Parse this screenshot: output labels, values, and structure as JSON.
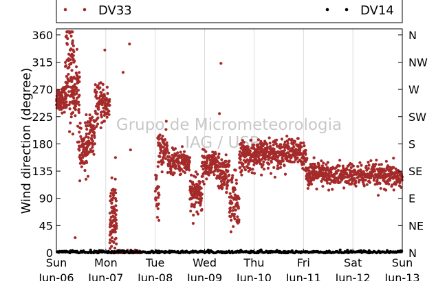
{
  "colors": {
    "dv33": "#a52a2a",
    "dv14": "#000000",
    "grid": "#d9d9d9",
    "watermark": "#c8c8c8"
  },
  "legend": {
    "dv33_label": "DV33",
    "dv14_label": "DV14"
  },
  "watermark": {
    "line1": "Grupo de Micrometeorologia",
    "line2": "IAG / USP"
  },
  "chart_data": {
    "type": "scatter",
    "title": "",
    "ylabel": "Wind direction (degree)",
    "xlabel": "",
    "ylim": [
      0,
      370
    ],
    "xlim": [
      0,
      7
    ],
    "grid": true,
    "legend_position": "top",
    "y_ticks": [
      0,
      45,
      90,
      135,
      180,
      225,
      270,
      315,
      360
    ],
    "y_tick_labels": [
      "0",
      "45",
      "90",
      "135",
      "180",
      "225",
      "270",
      "315",
      "360"
    ],
    "y2_tick_labels": [
      "N",
      "NE",
      "E",
      "SE",
      "S",
      "SW",
      "W",
      "NW",
      "N"
    ],
    "x_ticks": [
      0,
      1,
      2,
      3,
      4,
      5,
      6,
      7
    ],
    "x_tick_labels": [
      [
        "Sun",
        "Jun-06"
      ],
      [
        "Mon",
        "Jun-07"
      ],
      [
        "Tue",
        "Jun-08"
      ],
      [
        "Wed",
        "Jun-09"
      ],
      [
        "Thu",
        "Jun-10"
      ],
      [
        "Fri",
        "Jun-11"
      ],
      [
        "Sat",
        "Jun-12"
      ],
      [
        "Sun",
        "Jun-13"
      ]
    ],
    "series": [
      {
        "name": "DV33",
        "color": "#a52a2a",
        "segments": [
          {
            "x0": 0.0,
            "x1": 0.2,
            "center": 255,
            "spread": 10,
            "n": 90
          },
          {
            "x0": 0.18,
            "x1": 0.36,
            "center": 300,
            "spread": 45,
            "n": 90
          },
          {
            "x0": 0.3,
            "x1": 0.47,
            "center": 270,
            "spread": 25,
            "n": 70
          },
          {
            "x0": 0.45,
            "x1": 0.62,
            "center": 165,
            "spread": 18,
            "n": 60
          },
          {
            "x0": 0.6,
            "x1": 0.78,
            "center": 190,
            "spread": 22,
            "n": 70
          },
          {
            "x0": 0.78,
            "x1": 1.08,
            "center": 245,
            "spread": 15,
            "n": 100
          },
          {
            "x0": 1.08,
            "x1": 1.22,
            "center": 50,
            "spread": 35,
            "n": 90
          },
          {
            "x0": 1.22,
            "x1": 1.7,
            "center": 1.5,
            "spread": 1.2,
            "n": 70
          },
          {
            "x0": 2.0,
            "x1": 2.08,
            "center": 95,
            "spread": 20,
            "n": 25
          },
          {
            "x0": 2.05,
            "x1": 2.25,
            "center": 170,
            "spread": 15,
            "n": 60
          },
          {
            "x0": 2.25,
            "x1": 2.7,
            "center": 150,
            "spread": 10,
            "n": 130
          },
          {
            "x0": 2.7,
            "x1": 2.95,
            "center": 100,
            "spread": 18,
            "n": 90
          },
          {
            "x0": 2.95,
            "x1": 3.25,
            "center": 145,
            "spread": 12,
            "n": 100
          },
          {
            "x0": 3.25,
            "x1": 3.5,
            "center": 130,
            "spread": 15,
            "n": 100
          },
          {
            "x0": 3.5,
            "x1": 3.7,
            "center": 80,
            "spread": 25,
            "n": 70
          },
          {
            "x0": 3.7,
            "x1": 4.2,
            "center": 160,
            "spread": 12,
            "n": 170
          },
          {
            "x0": 4.2,
            "x1": 5.05,
            "center": 165,
            "spread": 12,
            "n": 240
          },
          {
            "x0": 5.05,
            "x1": 5.5,
            "center": 130,
            "spread": 10,
            "n": 150
          },
          {
            "x0": 5.5,
            "x1": 6.5,
            "center": 128,
            "spread": 10,
            "n": 240
          },
          {
            "x0": 6.5,
            "x1": 7.0,
            "center": 125,
            "spread": 10,
            "n": 130
          }
        ],
        "outliers": [
          {
            "x": 0.3,
            "y": 358
          },
          {
            "x": 0.98,
            "y": 335
          },
          {
            "x": 1.48,
            "y": 345
          },
          {
            "x": 3.33,
            "y": 313
          },
          {
            "x": 3.3,
            "y": 230
          },
          {
            "x": 1.35,
            "y": 298
          },
          {
            "x": 0.38,
            "y": 25
          },
          {
            "x": 1.5,
            "y": 170
          },
          {
            "x": 0.92,
            "y": 215
          }
        ]
      },
      {
        "name": "DV14",
        "color": "#000000",
        "segments": [
          {
            "x0": 0.0,
            "x1": 7.0,
            "center": 1.5,
            "spread": 1.2,
            "n": 400
          }
        ]
      }
    ]
  }
}
